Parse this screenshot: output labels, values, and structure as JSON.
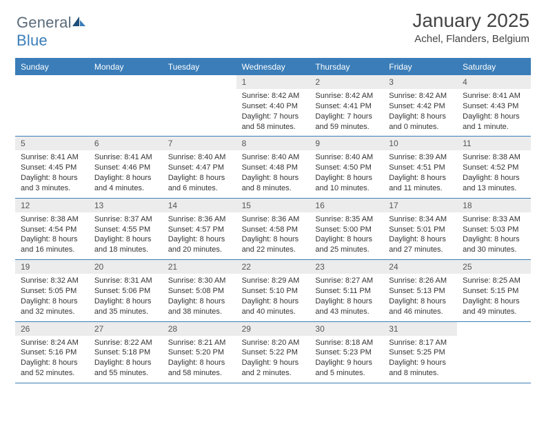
{
  "logo": {
    "textGray": "General",
    "textBlue": "Blue"
  },
  "title": "January 2025",
  "location": "Achel, Flanders, Belgium",
  "headerColor": "#3a7db8",
  "dayNumBg": "#ececec",
  "daysOfWeek": [
    "Sunday",
    "Monday",
    "Tuesday",
    "Wednesday",
    "Thursday",
    "Friday",
    "Saturday"
  ],
  "weeks": [
    [
      null,
      null,
      null,
      {
        "n": "1",
        "sr": "Sunrise: 8:42 AM",
        "ss": "Sunset: 4:40 PM",
        "dl": "Daylight: 7 hours and 58 minutes."
      },
      {
        "n": "2",
        "sr": "Sunrise: 8:42 AM",
        "ss": "Sunset: 4:41 PM",
        "dl": "Daylight: 7 hours and 59 minutes."
      },
      {
        "n": "3",
        "sr": "Sunrise: 8:42 AM",
        "ss": "Sunset: 4:42 PM",
        "dl": "Daylight: 8 hours and 0 minutes."
      },
      {
        "n": "4",
        "sr": "Sunrise: 8:41 AM",
        "ss": "Sunset: 4:43 PM",
        "dl": "Daylight: 8 hours and 1 minute."
      }
    ],
    [
      {
        "n": "5",
        "sr": "Sunrise: 8:41 AM",
        "ss": "Sunset: 4:45 PM",
        "dl": "Daylight: 8 hours and 3 minutes."
      },
      {
        "n": "6",
        "sr": "Sunrise: 8:41 AM",
        "ss": "Sunset: 4:46 PM",
        "dl": "Daylight: 8 hours and 4 minutes."
      },
      {
        "n": "7",
        "sr": "Sunrise: 8:40 AM",
        "ss": "Sunset: 4:47 PM",
        "dl": "Daylight: 8 hours and 6 minutes."
      },
      {
        "n": "8",
        "sr": "Sunrise: 8:40 AM",
        "ss": "Sunset: 4:48 PM",
        "dl": "Daylight: 8 hours and 8 minutes."
      },
      {
        "n": "9",
        "sr": "Sunrise: 8:40 AM",
        "ss": "Sunset: 4:50 PM",
        "dl": "Daylight: 8 hours and 10 minutes."
      },
      {
        "n": "10",
        "sr": "Sunrise: 8:39 AM",
        "ss": "Sunset: 4:51 PM",
        "dl": "Daylight: 8 hours and 11 minutes."
      },
      {
        "n": "11",
        "sr": "Sunrise: 8:38 AM",
        "ss": "Sunset: 4:52 PM",
        "dl": "Daylight: 8 hours and 13 minutes."
      }
    ],
    [
      {
        "n": "12",
        "sr": "Sunrise: 8:38 AM",
        "ss": "Sunset: 4:54 PM",
        "dl": "Daylight: 8 hours and 16 minutes."
      },
      {
        "n": "13",
        "sr": "Sunrise: 8:37 AM",
        "ss": "Sunset: 4:55 PM",
        "dl": "Daylight: 8 hours and 18 minutes."
      },
      {
        "n": "14",
        "sr": "Sunrise: 8:36 AM",
        "ss": "Sunset: 4:57 PM",
        "dl": "Daylight: 8 hours and 20 minutes."
      },
      {
        "n": "15",
        "sr": "Sunrise: 8:36 AM",
        "ss": "Sunset: 4:58 PM",
        "dl": "Daylight: 8 hours and 22 minutes."
      },
      {
        "n": "16",
        "sr": "Sunrise: 8:35 AM",
        "ss": "Sunset: 5:00 PM",
        "dl": "Daylight: 8 hours and 25 minutes."
      },
      {
        "n": "17",
        "sr": "Sunrise: 8:34 AM",
        "ss": "Sunset: 5:01 PM",
        "dl": "Daylight: 8 hours and 27 minutes."
      },
      {
        "n": "18",
        "sr": "Sunrise: 8:33 AM",
        "ss": "Sunset: 5:03 PM",
        "dl": "Daylight: 8 hours and 30 minutes."
      }
    ],
    [
      {
        "n": "19",
        "sr": "Sunrise: 8:32 AM",
        "ss": "Sunset: 5:05 PM",
        "dl": "Daylight: 8 hours and 32 minutes."
      },
      {
        "n": "20",
        "sr": "Sunrise: 8:31 AM",
        "ss": "Sunset: 5:06 PM",
        "dl": "Daylight: 8 hours and 35 minutes."
      },
      {
        "n": "21",
        "sr": "Sunrise: 8:30 AM",
        "ss": "Sunset: 5:08 PM",
        "dl": "Daylight: 8 hours and 38 minutes."
      },
      {
        "n": "22",
        "sr": "Sunrise: 8:29 AM",
        "ss": "Sunset: 5:10 PM",
        "dl": "Daylight: 8 hours and 40 minutes."
      },
      {
        "n": "23",
        "sr": "Sunrise: 8:27 AM",
        "ss": "Sunset: 5:11 PM",
        "dl": "Daylight: 8 hours and 43 minutes."
      },
      {
        "n": "24",
        "sr": "Sunrise: 8:26 AM",
        "ss": "Sunset: 5:13 PM",
        "dl": "Daylight: 8 hours and 46 minutes."
      },
      {
        "n": "25",
        "sr": "Sunrise: 8:25 AM",
        "ss": "Sunset: 5:15 PM",
        "dl": "Daylight: 8 hours and 49 minutes."
      }
    ],
    [
      {
        "n": "26",
        "sr": "Sunrise: 8:24 AM",
        "ss": "Sunset: 5:16 PM",
        "dl": "Daylight: 8 hours and 52 minutes."
      },
      {
        "n": "27",
        "sr": "Sunrise: 8:22 AM",
        "ss": "Sunset: 5:18 PM",
        "dl": "Daylight: 8 hours and 55 minutes."
      },
      {
        "n": "28",
        "sr": "Sunrise: 8:21 AM",
        "ss": "Sunset: 5:20 PM",
        "dl": "Daylight: 8 hours and 58 minutes."
      },
      {
        "n": "29",
        "sr": "Sunrise: 8:20 AM",
        "ss": "Sunset: 5:22 PM",
        "dl": "Daylight: 9 hours and 2 minutes."
      },
      {
        "n": "30",
        "sr": "Sunrise: 8:18 AM",
        "ss": "Sunset: 5:23 PM",
        "dl": "Daylight: 9 hours and 5 minutes."
      },
      {
        "n": "31",
        "sr": "Sunrise: 8:17 AM",
        "ss": "Sunset: 5:25 PM",
        "dl": "Daylight: 9 hours and 8 minutes."
      },
      null
    ]
  ]
}
